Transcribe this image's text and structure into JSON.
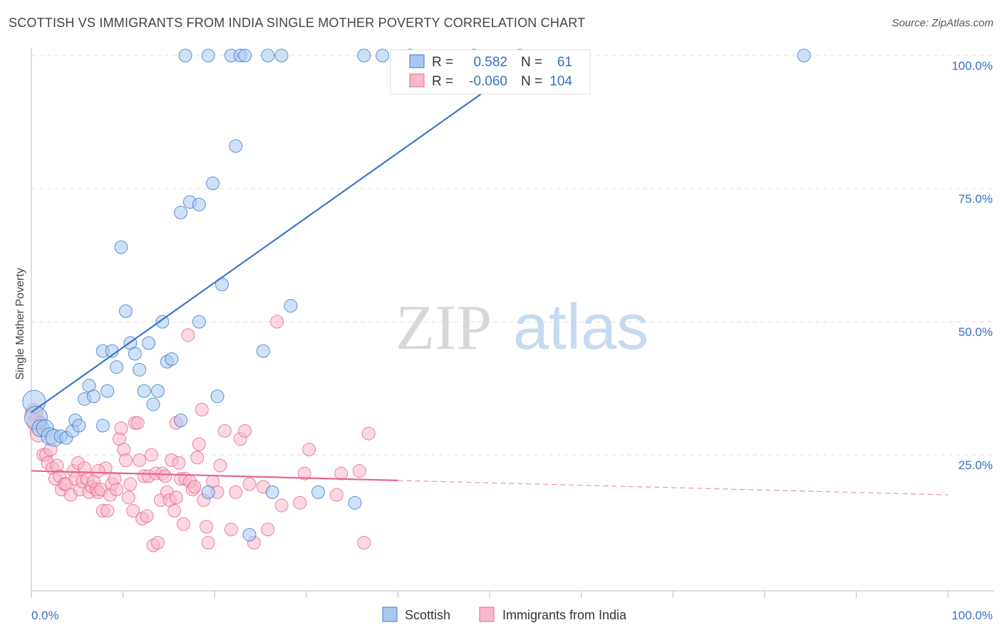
{
  "title": "SCOTTISH VS IMMIGRANTS FROM INDIA SINGLE MOTHER POVERTY CORRELATION CHART",
  "source": "Source: ZipAtlas.com",
  "watermark": {
    "zip": "ZIP",
    "atlas": "atlas"
  },
  "colors": {
    "blue": "#3a78c9",
    "blue_fill": "#a8c8f0",
    "blue_text": "#3a6fc4",
    "pink": "#e8648c",
    "pink_fill": "#f7b8cb",
    "grid": "#dddddd",
    "axis": "#bbbbbb"
  },
  "stats": {
    "r_label": "R =",
    "n_label": "N =",
    "scottish": {
      "r": "0.582",
      "n": "61"
    },
    "india": {
      "r": "-0.060",
      "n": "104"
    }
  },
  "chart_data": {
    "type": "scatter",
    "title": "SCOTTISH VS IMMIGRANTS FROM INDIA SINGLE MOTHER POVERTY CORRELATION CHART",
    "xlabel": "",
    "ylabel": "Single Mother Poverty",
    "xlim": [
      0,
      100
    ],
    "ylim": [
      0,
      100
    ],
    "x_tick_labels": [
      "0.0%",
      "100.0%"
    ],
    "y_ticks": [
      {
        "value": 25,
        "label": "25.0%"
      },
      {
        "value": 50,
        "label": "50.0%"
      },
      {
        "value": 75,
        "label": "75.0%"
      },
      {
        "value": 100,
        "label": "100.0%"
      }
    ],
    "series": [
      {
        "name": "Scottish",
        "color": "#3a78c9",
        "fill": "#a8c8f0",
        "trend": {
          "x": [
            0,
            55
          ],
          "y": [
            33,
            100
          ]
        },
        "points": [
          [
            0.3,
            35,
            3
          ],
          [
            0.5,
            32,
            3
          ],
          [
            1,
            30,
            2
          ],
          [
            1.5,
            30,
            2
          ],
          [
            2,
            28.5,
            2
          ],
          [
            2.5,
            28.2,
            2
          ],
          [
            3.2,
            28.5,
            1
          ],
          [
            3.8,
            28.2,
            1
          ],
          [
            4.5,
            29.5,
            1
          ],
          [
            4.8,
            31.5,
            1
          ],
          [
            5.2,
            30.5,
            1
          ],
          [
            5.8,
            35.5,
            1
          ],
          [
            6.3,
            38,
            1
          ],
          [
            6.8,
            36,
            1
          ],
          [
            7.8,
            30.5,
            1
          ],
          [
            7.8,
            44.5,
            1
          ],
          [
            8.3,
            37,
            1
          ],
          [
            8.8,
            44.5,
            1
          ],
          [
            9.3,
            41.5,
            1
          ],
          [
            9.8,
            64,
            1
          ],
          [
            10.3,
            52,
            1
          ],
          [
            10.8,
            46,
            1
          ],
          [
            11.3,
            44,
            1
          ],
          [
            11.8,
            41,
            1
          ],
          [
            12.3,
            37,
            1
          ],
          [
            12.8,
            46,
            1
          ],
          [
            13.3,
            34.5,
            1
          ],
          [
            13.8,
            37,
            1
          ],
          [
            14.3,
            50,
            1
          ],
          [
            14.8,
            42.5,
            1
          ],
          [
            15.3,
            43,
            1
          ],
          [
            16.3,
            31.5,
            1
          ],
          [
            16.3,
            70.5,
            1
          ],
          [
            17.3,
            72.5,
            1
          ],
          [
            18.3,
            50,
            1
          ],
          [
            18.3,
            72,
            1
          ],
          [
            19.3,
            18,
            1
          ],
          [
            19.8,
            76,
            1
          ],
          [
            20.3,
            36,
            1
          ],
          [
            20.8,
            57,
            1
          ],
          [
            22.3,
            83,
            1
          ],
          [
            23.8,
            10,
            1
          ],
          [
            25.3,
            44.5,
            1
          ],
          [
            26.3,
            18,
            1
          ],
          [
            28.3,
            53,
            1
          ],
          [
            31.3,
            18,
            1
          ],
          [
            35.3,
            16,
            1
          ],
          [
            16.8,
            100,
            1
          ],
          [
            19.3,
            100,
            1
          ],
          [
            21.8,
            100,
            1
          ],
          [
            22.8,
            100,
            1
          ],
          [
            23.3,
            100,
            1
          ],
          [
            25.8,
            100,
            1
          ],
          [
            27.3,
            100,
            1
          ],
          [
            36.3,
            100,
            1
          ],
          [
            38.3,
            100,
            1
          ],
          [
            41.3,
            100,
            1
          ],
          [
            48.3,
            100,
            1
          ],
          [
            53.3,
            100,
            1
          ],
          [
            84.3,
            100,
            1
          ]
        ]
      },
      {
        "name": "Immigrants from India",
        "color": "#e8648c",
        "fill": "#f7b8cb",
        "trend": {
          "x": [
            0,
            40
          ],
          "y": [
            22,
            20.2
          ]
        },
        "trend_dashed": {
          "x": [
            40,
            100
          ],
          "y": [
            20.2,
            17.5
          ]
        },
        "points": [
          [
            0.3,
            33,
            2
          ],
          [
            0.5,
            31,
            2
          ],
          [
            0.8,
            29,
            2
          ],
          [
            1,
            31,
            1
          ],
          [
            1.3,
            25,
            1
          ],
          [
            1.6,
            25,
            1
          ],
          [
            1.8,
            23.5,
            1
          ],
          [
            2.1,
            26,
            1
          ],
          [
            2.3,
            22.5,
            1
          ],
          [
            2.6,
            20.5,
            1
          ],
          [
            2.8,
            23,
            1
          ],
          [
            3.1,
            21,
            1
          ],
          [
            3.3,
            18.5,
            1
          ],
          [
            3.6,
            19.5,
            1
          ],
          [
            3.8,
            19.5,
            1
          ],
          [
            4.3,
            17.5,
            1
          ],
          [
            4.6,
            22,
            1
          ],
          [
            4.8,
            20.5,
            1
          ],
          [
            5.1,
            23.5,
            1
          ],
          [
            5.3,
            18.5,
            1
          ],
          [
            5.6,
            20,
            1
          ],
          [
            5.8,
            22.5,
            1
          ],
          [
            6.1,
            20.5,
            1
          ],
          [
            6.3,
            18,
            1
          ],
          [
            6.6,
            19,
            1
          ],
          [
            6.8,
            20,
            1
          ],
          [
            7.1,
            18.5,
            1
          ],
          [
            7.3,
            18,
            1
          ],
          [
            7.6,
            18.5,
            1
          ],
          [
            7.8,
            14.5,
            1
          ],
          [
            8.1,
            22.5,
            1
          ],
          [
            8.3,
            14.5,
            1
          ],
          [
            8.6,
            17.5,
            1
          ],
          [
            8.8,
            19.5,
            1
          ],
          [
            9.1,
            20.5,
            1
          ],
          [
            9.3,
            18.5,
            1
          ],
          [
            9.6,
            28,
            1
          ],
          [
            9.8,
            30,
            1
          ],
          [
            10.1,
            26,
            1
          ],
          [
            10.3,
            24,
            1
          ],
          [
            10.6,
            17,
            1
          ],
          [
            10.8,
            19.5,
            1
          ],
          [
            11.1,
            14.5,
            1
          ],
          [
            11.3,
            31,
            1
          ],
          [
            11.6,
            31,
            1
          ],
          [
            11.8,
            24,
            1
          ],
          [
            12.1,
            13,
            1
          ],
          [
            12.3,
            21,
            1
          ],
          [
            12.6,
            13.5,
            1
          ],
          [
            12.8,
            21,
            1
          ],
          [
            13.1,
            25,
            1
          ],
          [
            13.3,
            8,
            1
          ],
          [
            13.6,
            21.5,
            1
          ],
          [
            13.8,
            8.5,
            1
          ],
          [
            14.1,
            16.5,
            1
          ],
          [
            14.3,
            21.5,
            1
          ],
          [
            14.6,
            21,
            1
          ],
          [
            14.8,
            18,
            1
          ],
          [
            15.1,
            16.5,
            1
          ],
          [
            15.3,
            24,
            1
          ],
          [
            15.6,
            14.5,
            1
          ],
          [
            15.8,
            17,
            1
          ],
          [
            16.1,
            23.5,
            1
          ],
          [
            16.3,
            20.5,
            1
          ],
          [
            16.6,
            12,
            1
          ],
          [
            16.8,
            20.5,
            1
          ],
          [
            17.1,
            47.5,
            1
          ],
          [
            17.3,
            20,
            1
          ],
          [
            17.6,
            18.5,
            1
          ],
          [
            17.8,
            19,
            1
          ],
          [
            18.1,
            24.5,
            1
          ],
          [
            18.3,
            27,
            1
          ],
          [
            18.6,
            33.5,
            1
          ],
          [
            18.8,
            16.5,
            1
          ],
          [
            19.1,
            11.5,
            1
          ],
          [
            19.3,
            8.5,
            1
          ],
          [
            19.8,
            20,
            1
          ],
          [
            20.3,
            18,
            1
          ],
          [
            20.6,
            23,
            1
          ],
          [
            21.1,
            29.5,
            1
          ],
          [
            21.8,
            11,
            1
          ],
          [
            22.3,
            18,
            1
          ],
          [
            22.8,
            28,
            1
          ],
          [
            23.3,
            29.5,
            1
          ],
          [
            23.8,
            19.5,
            1
          ],
          [
            24.3,
            8.5,
            1
          ],
          [
            25.3,
            19,
            1
          ],
          [
            25.8,
            11,
            1
          ],
          [
            26.8,
            50,
            1
          ],
          [
            27.3,
            15.5,
            1
          ],
          [
            29.3,
            16,
            1
          ],
          [
            29.8,
            21.5,
            1
          ],
          [
            30.3,
            26,
            1
          ],
          [
            33.3,
            17.5,
            1
          ],
          [
            33.8,
            21.5,
            1
          ],
          [
            35.8,
            22,
            1
          ],
          [
            36.3,
            8.5,
            1
          ],
          [
            36.8,
            29,
            1
          ],
          [
            15.8,
            31,
            1
          ],
          [
            7.3,
            22,
            1
          ]
        ]
      }
    ]
  },
  "legend": {
    "scottish": "Scottish",
    "india": "Immigrants from India"
  }
}
